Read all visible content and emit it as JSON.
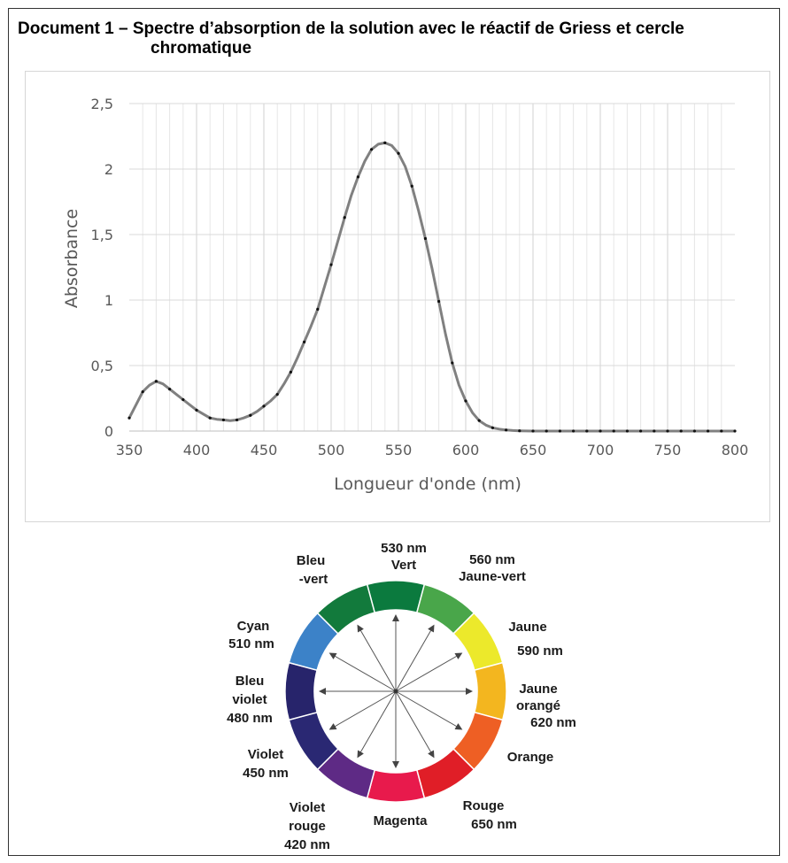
{
  "document": {
    "title_line1": "Document 1 – Spectre d’absorption de la solution avec le réactif de Griess et cercle",
    "title_line2": "chromatique"
  },
  "chart_data": {
    "type": "line",
    "xlabel": "Longueur d'onde (nm)",
    "ylabel": "Absorbance",
    "xlim": [
      350,
      800
    ],
    "ylim": [
      0,
      2.5
    ],
    "x_ticks": [
      "350",
      "400",
      "450",
      "500",
      "550",
      "600",
      "650",
      "700",
      "750",
      "800"
    ],
    "y_ticks": [
      "0",
      "0,5",
      "1",
      "1,5",
      "2",
      "2,5"
    ],
    "grid": true,
    "series": [
      {
        "x": [
          350,
          355,
          360,
          365,
          370,
          375,
          380,
          385,
          390,
          395,
          400,
          405,
          410,
          415,
          420,
          425,
          430,
          435,
          440,
          445,
          450,
          455,
          460,
          465,
          470,
          475,
          480,
          485,
          490,
          495,
          500,
          505,
          510,
          515,
          520,
          525,
          530,
          535,
          540,
          545,
          550,
          555,
          560,
          565,
          570,
          575,
          580,
          585,
          590,
          595,
          600,
          605,
          610,
          615,
          620,
          625,
          630,
          635,
          640,
          645,
          650,
          660,
          670,
          680,
          690,
          700,
          710,
          720,
          730,
          740,
          750,
          760,
          770,
          780,
          790,
          800
        ],
        "y": [
          0.1,
          0.2,
          0.3,
          0.35,
          0.38,
          0.36,
          0.32,
          0.28,
          0.24,
          0.2,
          0.16,
          0.13,
          0.1,
          0.09,
          0.085,
          0.08,
          0.085,
          0.1,
          0.12,
          0.15,
          0.19,
          0.23,
          0.28,
          0.36,
          0.45,
          0.56,
          0.68,
          0.8,
          0.93,
          1.1,
          1.27,
          1.45,
          1.63,
          1.8,
          1.94,
          2.06,
          2.15,
          2.19,
          2.2,
          2.18,
          2.12,
          2.02,
          1.87,
          1.68,
          1.47,
          1.24,
          0.99,
          0.74,
          0.52,
          0.35,
          0.23,
          0.14,
          0.08,
          0.045,
          0.025,
          0.015,
          0.008,
          0.004,
          0.002,
          0.001,
          0,
          0,
          0,
          0,
          0,
          0,
          0,
          0,
          0,
          0,
          0,
          0,
          0,
          0,
          0,
          0
        ],
        "color": "#808080"
      }
    ]
  },
  "color_wheel": {
    "segments": [
      {
        "name": "Vert",
        "color": "#0b7a3e"
      },
      {
        "name": "Jaune-vert",
        "color": "#49a64a"
      },
      {
        "name": "Jaune",
        "color": "#ece92b"
      },
      {
        "name": "Jaune orangé",
        "color": "#f3b61f"
      },
      {
        "name": "Orange",
        "color": "#ee5f24"
      },
      {
        "name": "Rouge",
        "color": "#e01e27"
      },
      {
        "name": "Magenta",
        "color": "#e81a4c"
      },
      {
        "name": "Violet rouge",
        "color": "#5e2a85"
      },
      {
        "name": "Violet",
        "color": "#2a2873"
      },
      {
        "name": "Bleu violet",
        "color": "#27246b"
      },
      {
        "name": "Cyan",
        "color": "#3c82c8"
      },
      {
        "name": "Bleu-vert",
        "color": "#127a3c"
      }
    ],
    "labels": {
      "vert": [
        "530 nm",
        "Vert"
      ],
      "jaune_vert": [
        "560 nm",
        "Jaune-vert"
      ],
      "jaune": [
        "Jaune",
        "590 nm"
      ],
      "jaune_orange": [
        "Jaune",
        "orangé",
        "620 nm"
      ],
      "orange": [
        "Orange"
      ],
      "rouge": [
        "Rouge",
        "650 nm"
      ],
      "magenta": [
        "Magenta"
      ],
      "violet_rouge": [
        "Violet",
        "rouge",
        "420 nm"
      ],
      "violet": [
        "Violet",
        "450 nm"
      ],
      "bleu_violet": [
        "Bleu",
        "violet",
        "480 nm"
      ],
      "cyan": [
        "Cyan",
        "510 nm"
      ],
      "bleu_vert": [
        "Bleu",
        "-vert"
      ]
    }
  }
}
